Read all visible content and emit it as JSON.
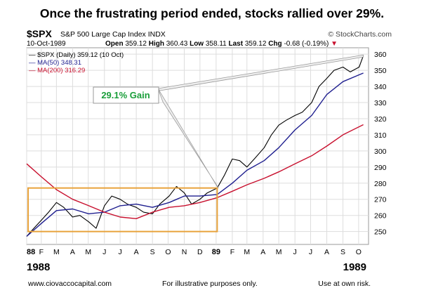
{
  "headline": "Once the frustrating period ended, stocks rallied over 29%.",
  "header": {
    "symbol": "$SPX",
    "name": "S&P 500 Large Cap Index INDX",
    "source": "© StockCharts.com",
    "date": "10-Oct-1989",
    "open_label": "Open",
    "open": "359.12",
    "high_label": "High",
    "high": "360.43",
    "low_label": "Low",
    "low": "358.11",
    "last_label": "Last",
    "last": "359.12",
    "chg_label": "Chg",
    "chg": "-0.68 (-0.19%)",
    "chg_marker": "▼"
  },
  "legend": [
    {
      "text": "— $SPX (Daily) 359.12 (10 Oct)",
      "color": "#000000"
    },
    {
      "text": "— MA(50) 348.31",
      "color": "#1f1f8f"
    },
    {
      "text": "— MA(200) 316.29",
      "color": "#c8102e"
    }
  ],
  "annotation": {
    "text": "29.1% Gain",
    "color": "#1a9e3a"
  },
  "years": {
    "left": "1988",
    "right": "1989"
  },
  "footer": {
    "left": "www.ciovaccocapital.com",
    "center": "For illustrative purposes only.",
    "right": "Use at own risk."
  },
  "colors": {
    "price": "#000000",
    "ma50": "#1f1f8f",
    "ma200": "#c8102e",
    "box": "#e8a33c",
    "grid": "#dddddd"
  },
  "chart_data": {
    "type": "line",
    "title": "Once the frustrating period ended, stocks rallied over 29%.",
    "xlabel": "",
    "ylabel": "",
    "ylim": [
      242,
      364
    ],
    "x_tick_labels": [
      "88",
      "F",
      "M",
      "A",
      "M",
      "J",
      "J",
      "A",
      "S",
      "O",
      "N",
      "D",
      "89",
      "F",
      "M",
      "A",
      "M",
      "J",
      "J",
      "A",
      "S",
      "O"
    ],
    "y_ticks": [
      250,
      260,
      270,
      280,
      290,
      300,
      310,
      320,
      330,
      340,
      350,
      360
    ],
    "grid": true,
    "series": [
      {
        "name": "$SPX (Daily)",
        "x": [
          "1988-01-04",
          "1988-01-15",
          "1988-02-01",
          "1988-02-15",
          "1988-03-01",
          "1988-03-15",
          "1988-04-01",
          "1988-04-15",
          "1988-05-02",
          "1988-05-16",
          "1988-06-01",
          "1988-06-15",
          "1988-07-01",
          "1988-07-15",
          "1988-08-01",
          "1988-08-15",
          "1988-09-01",
          "1988-09-15",
          "1988-10-03",
          "1988-10-17",
          "1988-11-01",
          "1988-11-15",
          "1988-12-01",
          "1988-12-15",
          "1989-01-03",
          "1989-01-17",
          "1989-02-01",
          "1989-02-15",
          "1989-03-01",
          "1989-03-15",
          "1989-04-03",
          "1989-04-17",
          "1989-05-01",
          "1989-05-15",
          "1989-06-01",
          "1989-06-15",
          "1989-07-03",
          "1989-07-17",
          "1989-08-01",
          "1989-08-15",
          "1989-09-01",
          "1989-09-15",
          "1989-10-02",
          "1989-10-10"
        ],
        "values": [
          247,
          251,
          257,
          262,
          268,
          265,
          259,
          260,
          256,
          252,
          266,
          272,
          270,
          267,
          265,
          262,
          261,
          267,
          272,
          278,
          274,
          267,
          270,
          274,
          277,
          285,
          295,
          294,
          290,
          295,
          302,
          310,
          316,
          319,
          322,
          324,
          330,
          340,
          345,
          350,
          352,
          349,
          352,
          359.12
        ]
      },
      {
        "name": "MA(50)",
        "x": [
          "1988-01-04",
          "1988-02-01",
          "1988-03-01",
          "1988-04-01",
          "1988-05-02",
          "1988-06-01",
          "1988-07-01",
          "1988-08-01",
          "1988-09-01",
          "1988-10-03",
          "1988-11-01",
          "1988-12-01",
          "1989-01-03",
          "1989-02-01",
          "1989-03-01",
          "1989-04-03",
          "1989-05-01",
          "1989-06-01",
          "1989-07-03",
          "1989-08-01",
          "1989-09-01",
          "1989-10-10"
        ],
        "values": [
          247,
          255,
          263,
          264,
          261,
          262,
          266,
          267,
          265,
          268,
          272,
          272,
          273,
          280,
          288,
          294,
          302,
          313,
          322,
          335,
          343,
          348.31
        ]
      },
      {
        "name": "MA(200)",
        "x": [
          "1988-01-04",
          "1988-02-01",
          "1988-03-01",
          "1988-04-01",
          "1988-05-02",
          "1988-06-01",
          "1988-07-01",
          "1988-08-01",
          "1988-09-01",
          "1988-10-03",
          "1988-11-01",
          "1988-12-01",
          "1989-01-03",
          "1989-02-01",
          "1989-03-01",
          "1989-04-03",
          "1989-05-01",
          "1989-06-01",
          "1989-07-03",
          "1989-08-01",
          "1989-09-01",
          "1989-10-10"
        ],
        "values": [
          292,
          284,
          276,
          270,
          266,
          262,
          259,
          258,
          262,
          265,
          266,
          268,
          271,
          275,
          279,
          283,
          287,
          292,
          297,
          303,
          310,
          316.29
        ]
      }
    ],
    "highlight_box": {
      "x": [
        "1988-01-04",
        "1989-01-03"
      ],
      "y": [
        250,
        277
      ]
    }
  }
}
